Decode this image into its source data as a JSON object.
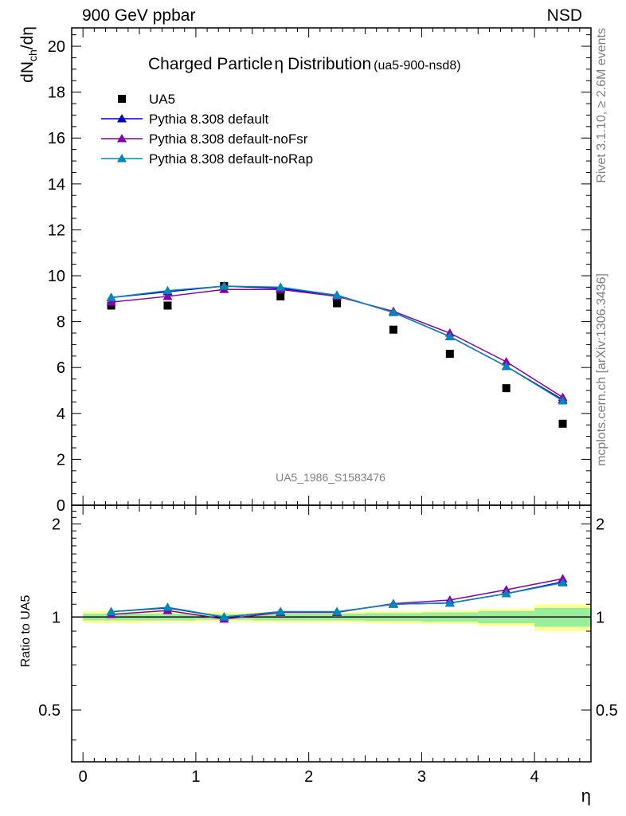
{
  "header": {
    "left": "900 GeV ppbar",
    "right": "NSD"
  },
  "side_labels": {
    "rivet": "Rivet 3.1.10, ≥ 2.6M events",
    "mcplots": "mcplots.cern.ch [arXiv:1306.3436]"
  },
  "analysis_id": "UA5_1986_S1583476",
  "colors": {
    "data": "#000000",
    "default": "#0000cc",
    "noFsr": "#8800aa",
    "noRap": "#0088bb",
    "band_inner": "#99ee99",
    "band_outer": "#ffff99"
  },
  "chart_data": [
    {
      "type": "line",
      "title": "Charged Particle",
      "title_symbol": "η",
      "title_suffix": "Distribution",
      "subtitle": "(ua5-900-nsd8)",
      "ylabel": "dN_ch/dη",
      "ylabel_main": "dN",
      "ylabel_sub": "ch",
      "ylabel_tail": "/dη",
      "xlabel": "η",
      "xlim": [
        -0.1,
        4.5
      ],
      "ylim": [
        0,
        20.8
      ],
      "yticks": [
        0,
        2,
        4,
        6,
        8,
        10,
        12,
        14,
        16,
        18,
        20
      ],
      "legend_position": "top-left",
      "x": [
        0.25,
        0.75,
        1.25,
        1.75,
        2.25,
        2.75,
        3.25,
        3.75,
        4.25
      ],
      "series": [
        {
          "name": "UA5",
          "style": "square",
          "values": [
            8.7,
            8.7,
            9.55,
            9.1,
            8.8,
            7.65,
            6.6,
            5.1,
            3.55
          ]
        },
        {
          "name": "Pythia 8.308 default",
          "style": "triangle",
          "values": [
            9.05,
            9.3,
            9.55,
            9.45,
            9.15,
            8.4,
            7.35,
            6.05,
            4.6
          ]
        },
        {
          "name": "Pythia 8.308 default-noFsr",
          "style": "triangle",
          "values": [
            8.85,
            9.1,
            9.4,
            9.4,
            9.1,
            8.45,
            7.5,
            6.25,
            4.7
          ]
        },
        {
          "name": "Pythia 8.308 default-noRap",
          "style": "triangle",
          "values": [
            9.05,
            9.35,
            9.55,
            9.5,
            9.15,
            8.4,
            7.35,
            6.05,
            4.55
          ]
        }
      ]
    },
    {
      "type": "line",
      "ylabel": "Ratio to UA5",
      "xlabel": "η",
      "xlim": [
        -0.1,
        4.5
      ],
      "ylim": [
        0.34,
        2.3
      ],
      "log_y": true,
      "yticks": [
        0.5,
        1,
        2
      ],
      "ytick_labels": [
        "0.5",
        "1",
        "2"
      ],
      "xticks": [
        0,
        1,
        2,
        3,
        4
      ],
      "xtick_labels": [
        "0",
        "1",
        "2",
        "3",
        "4"
      ],
      "x": [
        0.25,
        0.75,
        1.25,
        1.75,
        2.25,
        2.75,
        3.25,
        3.75,
        4.25
      ],
      "bin_edges": [
        0,
        0.5,
        1,
        1.5,
        2,
        2.5,
        3,
        3.5,
        4,
        4.5
      ],
      "band_inner": [
        0.025,
        0.025,
        0.02,
        0.025,
        0.025,
        0.03,
        0.035,
        0.045,
        0.07
      ],
      "band_outer": [
        0.045,
        0.04,
        0.035,
        0.04,
        0.04,
        0.045,
        0.05,
        0.065,
        0.1
      ],
      "series": [
        {
          "name": "Pythia 8.308 default",
          "values": [
            1.04,
            1.07,
            1.0,
            1.04,
            1.04,
            1.1,
            1.11,
            1.19,
            1.3
          ]
        },
        {
          "name": "Pythia 8.308 default-noFsr",
          "values": [
            1.02,
            1.05,
            0.985,
            1.035,
            1.035,
            1.105,
            1.135,
            1.225,
            1.33
          ]
        },
        {
          "name": "Pythia 8.308 default-noRap",
          "values": [
            1.04,
            1.075,
            1.0,
            1.04,
            1.04,
            1.1,
            1.11,
            1.19,
            1.29
          ]
        }
      ]
    }
  ]
}
